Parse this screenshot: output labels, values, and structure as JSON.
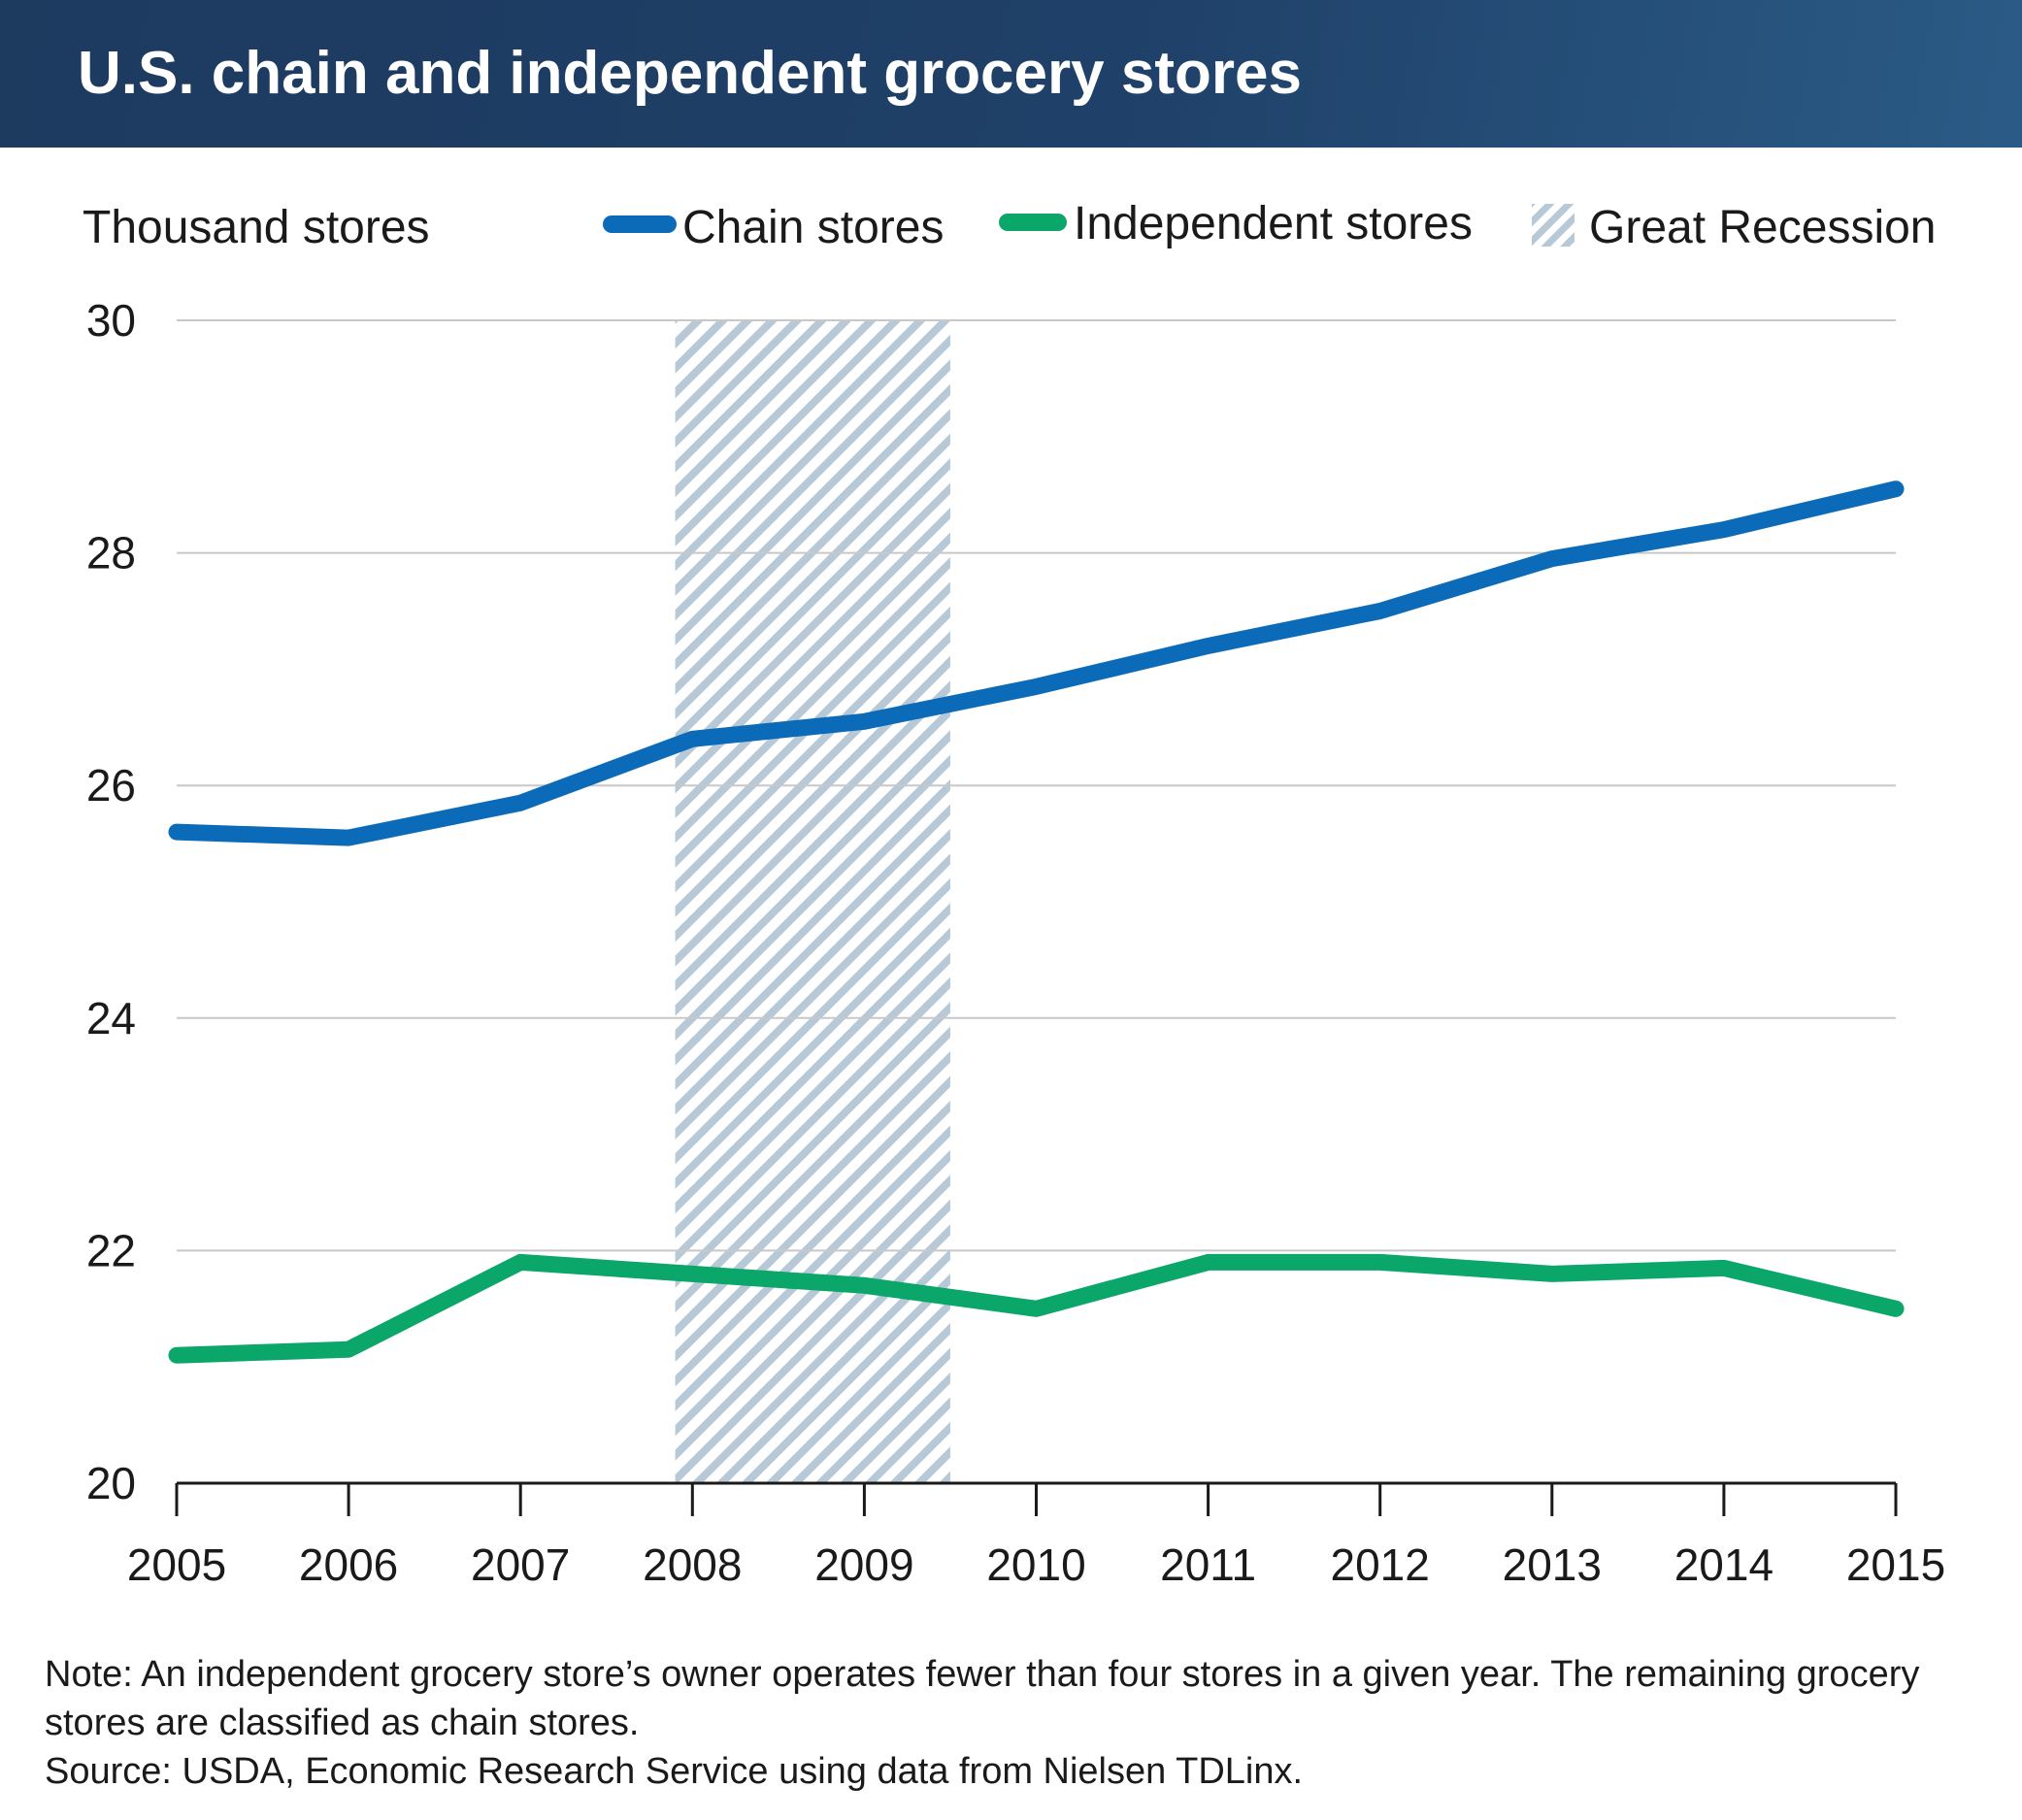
{
  "title": "U.S. chain and independent grocery stores",
  "notes": {
    "note": "Note: An independent grocery store’s owner operates fewer than four stores in a given year. The remaining grocery stores are classified as chain stores.",
    "source": "Source: USDA, Economic Research Service using data from Nielsen TDLinx."
  },
  "legend": {
    "chain": "Chain stores",
    "independent": "Independent stores",
    "recession": "Great Recession"
  },
  "colors": {
    "chain": "#0b6bb8",
    "independent": "#0aa66a",
    "recession": "#b7c9d6",
    "gridline": "#c8c8c8"
  },
  "chart_data": {
    "type": "line",
    "ylabel": "Thousand stores",
    "xlabel": "",
    "ylim": [
      20,
      30
    ],
    "yticks": [
      20,
      22,
      24,
      26,
      28,
      30
    ],
    "x": [
      2005,
      2006,
      2007,
      2008,
      2009,
      2010,
      2011,
      2012,
      2013,
      2014,
      2015
    ],
    "series": [
      {
        "name": "Chain stores",
        "values": [
          25.6,
          25.55,
          25.85,
          26.4,
          26.55,
          26.85,
          27.2,
          27.5,
          27.95,
          28.2,
          28.55
        ]
      },
      {
        "name": "Independent stores",
        "values": [
          21.1,
          21.15,
          21.9,
          21.8,
          21.7,
          21.5,
          21.9,
          21.9,
          21.8,
          21.85,
          21.5
        ]
      }
    ],
    "shaded_period": {
      "name": "Great Recession",
      "start": 2007.9,
      "end": 2009.5
    },
    "grid": true,
    "legend_position": "top"
  }
}
